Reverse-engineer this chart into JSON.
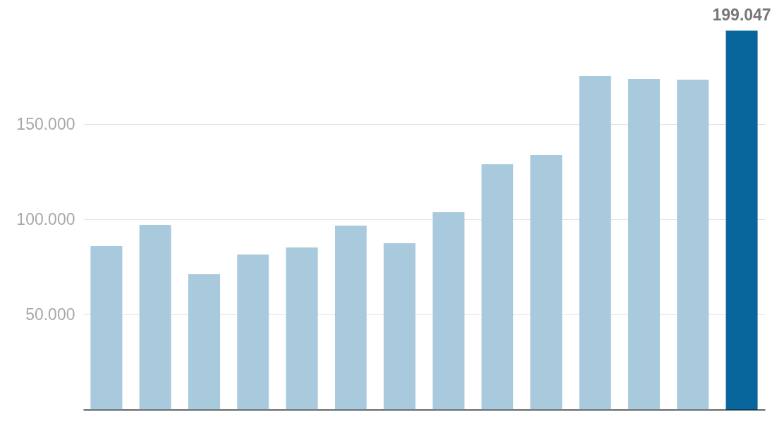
{
  "chart_data": {
    "type": "bar",
    "categories": [
      null,
      null,
      null,
      null,
      null,
      null,
      null,
      null,
      null,
      null,
      null,
      null,
      null,
      null
    ],
    "values": [
      85900,
      97000,
      71100,
      81500,
      85200,
      96700,
      87400,
      103700,
      128900,
      133700,
      175200,
      173700,
      173300,
      199047
    ],
    "colors": [
      "#a9cadc",
      "#a9cadc",
      "#a9cadc",
      "#a9cadc",
      "#a9cadc",
      "#a9cadc",
      "#a9cadc",
      "#a9cadc",
      "#a9cadc",
      "#a9cadc",
      "#a9cadc",
      "#a9cadc",
      "#a9cadc",
      "#08669c"
    ],
    "value_labels": [
      null,
      null,
      null,
      null,
      null,
      null,
      null,
      null,
      null,
      null,
      null,
      null,
      null,
      "199.047"
    ],
    "ylim": [
      0,
      200000
    ],
    "yticks": [
      {
        "value": 50000,
        "label": "50.000"
      },
      {
        "value": 100000,
        "label": "100.000"
      },
      {
        "value": 150000,
        "label": "150.000"
      }
    ],
    "grid": "y"
  }
}
